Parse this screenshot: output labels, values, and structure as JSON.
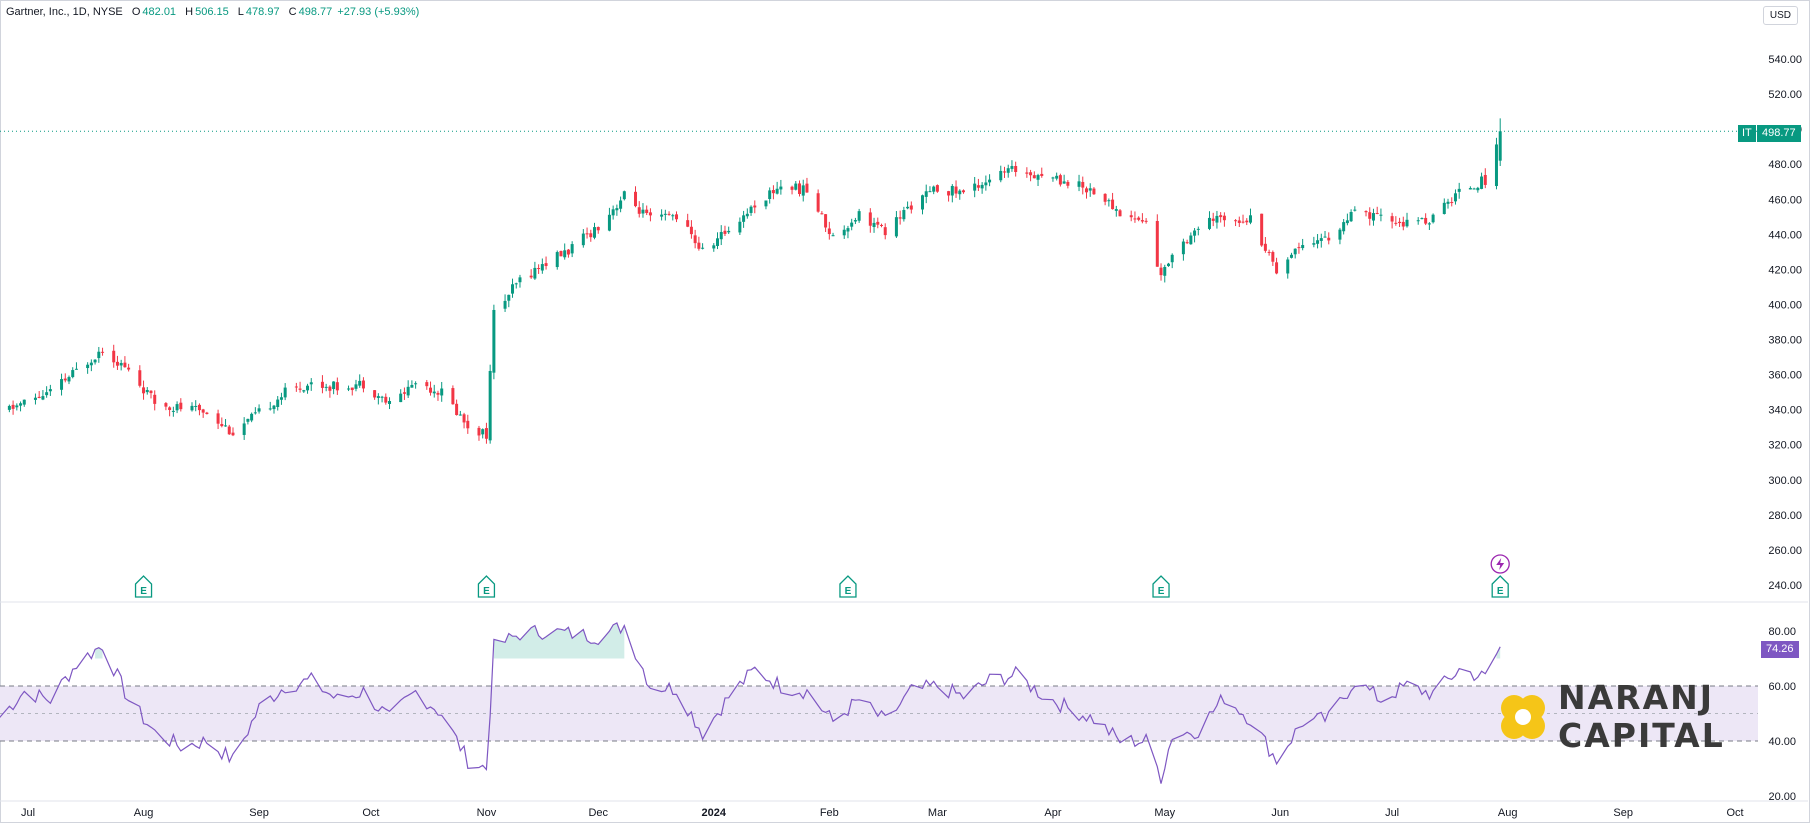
{
  "header": {
    "instrument": "Gartner, Inc., 1D, NYSE",
    "open_label": "O",
    "open": "482.01",
    "high_label": "H",
    "high": "506.15",
    "low_label": "L",
    "low": "478.97",
    "close_label": "C",
    "close": "498.77",
    "change": "+27.93 (+5.93%)"
  },
  "currency": "USD",
  "last_price": {
    "ticker": "IT",
    "value": "498.77"
  },
  "rsi_value": "74.26",
  "brand": {
    "line1": "NARANJ",
    "line2": "CAPITAL"
  },
  "colors": {
    "up": "#089981",
    "down": "#f23645",
    "rsi": "#7e57c2",
    "rsi_band": "#ede7f6",
    "earnings": "#089981",
    "dividend": "#9c27b0"
  },
  "icons": {
    "earnings": "E",
    "dividend": "lightning-icon"
  },
  "chart_data": [
    {
      "type": "candlestick",
      "title": "Gartner, Inc., 1D, NYSE",
      "xlabel": "",
      "ylabel": "",
      "ylim": [
        230,
        555
      ],
      "y_ticks": [
        240,
        260,
        280,
        300,
        320,
        340,
        360,
        380,
        400,
        420,
        440,
        460,
        480,
        500,
        520,
        540
      ],
      "y_tick_labels": [
        "240.00",
        "260.00",
        "280.00",
        "300.00",
        "320.00",
        "340.00",
        "360.00",
        "380.00",
        "400.00",
        "420.00",
        "440.00",
        "460.00",
        "480.00",
        "500.00",
        "520.00",
        "540.00"
      ],
      "x_tick_labels": [
        "Jul",
        "Aug",
        "Sep",
        "Oct",
        "Nov",
        "Dec",
        "2024",
        "Feb",
        "Mar",
        "Apr",
        "May",
        "Jun",
        "Jul",
        "Aug",
        "Sep",
        "Oct"
      ],
      "x_tick_dates": [
        "2023-07-01",
        "2023-08-01",
        "2023-09-01",
        "2023-10-01",
        "2023-11-01",
        "2023-12-01",
        "2024-01-01",
        "2024-02-01",
        "2024-03-01",
        "2024-04-01",
        "2024-05-01",
        "2024-06-01",
        "2024-07-01",
        "2024-08-01",
        "2024-09-01",
        "2024-10-01"
      ],
      "grid": false,
      "close_points": [
        [
          "2023-06-23",
          338
        ],
        [
          "2023-06-30",
          344
        ],
        [
          "2023-07-07",
          350
        ],
        [
          "2023-07-14",
          362
        ],
        [
          "2023-07-21",
          375
        ],
        [
          "2023-07-28",
          362
        ],
        [
          "2023-08-04",
          344
        ],
        [
          "2023-08-11",
          341
        ],
        [
          "2023-08-18",
          339
        ],
        [
          "2023-08-25",
          327
        ],
        [
          "2023-09-01",
          338
        ],
        [
          "2023-09-08",
          350
        ],
        [
          "2023-09-15",
          355
        ],
        [
          "2023-09-22",
          353
        ],
        [
          "2023-09-29",
          355
        ],
        [
          "2023-10-06",
          343
        ],
        [
          "2023-10-13",
          356
        ],
        [
          "2023-10-20",
          350
        ],
        [
          "2023-10-27",
          331
        ],
        [
          "2023-11-01",
          326
        ],
        [
          "2023-11-03",
          395
        ],
        [
          "2023-11-10",
          414
        ],
        [
          "2023-11-17",
          424
        ],
        [
          "2023-11-24",
          432
        ],
        [
          "2023-12-01",
          445
        ],
        [
          "2023-12-08",
          462
        ],
        [
          "2023-12-15",
          448
        ],
        [
          "2023-12-22",
          451
        ],
        [
          "2023-12-29",
          430
        ],
        [
          "2024-01-05",
          443
        ],
        [
          "2024-01-12",
          457
        ],
        [
          "2024-01-19",
          468
        ],
        [
          "2024-01-26",
          465
        ],
        [
          "2024-02-02",
          438
        ],
        [
          "2024-02-09",
          452
        ],
        [
          "2024-02-16",
          441
        ],
        [
          "2024-02-23",
          457
        ],
        [
          "2024-03-01",
          466
        ],
        [
          "2024-03-08",
          464
        ],
        [
          "2024-03-15",
          472
        ],
        [
          "2024-03-22",
          477
        ],
        [
          "2024-03-29",
          474
        ],
        [
          "2024-04-05",
          470
        ],
        [
          "2024-04-12",
          465
        ],
        [
          "2024-04-19",
          452
        ],
        [
          "2024-04-26",
          447
        ],
        [
          "2024-04-30",
          415
        ],
        [
          "2024-05-03",
          430
        ],
        [
          "2024-05-10",
          444
        ],
        [
          "2024-05-17",
          450
        ],
        [
          "2024-05-24",
          449
        ],
        [
          "2024-05-31",
          420
        ],
        [
          "2024-06-07",
          436
        ],
        [
          "2024-06-14",
          438
        ],
        [
          "2024-06-21",
          452
        ],
        [
          "2024-06-28",
          449
        ],
        [
          "2024-07-05",
          446
        ],
        [
          "2024-07-12",
          449
        ],
        [
          "2024-07-19",
          465
        ],
        [
          "2024-07-26",
          471
        ],
        [
          "2024-07-30",
          499
        ]
      ],
      "earnings_dates": [
        "2023-08-01",
        "2023-11-01",
        "2024-02-06",
        "2024-04-30",
        "2024-07-30"
      ],
      "dividend_dates": [
        "2024-07-30"
      ]
    },
    {
      "type": "line",
      "title": "",
      "ylim": [
        18,
        86
      ],
      "y_ticks": [
        20,
        40,
        60,
        80
      ],
      "y_tick_labels": [
        "20.00",
        "40.00",
        "60.00",
        "80.00"
      ],
      "band": [
        40,
        60
      ],
      "midline": 50,
      "points": [
        [
          "2023-06-23",
          48
        ],
        [
          "2023-06-30",
          58
        ],
        [
          "2023-07-07",
          55
        ],
        [
          "2023-07-14",
          68
        ],
        [
          "2023-07-21",
          75
        ],
        [
          "2023-07-28",
          55
        ],
        [
          "2023-08-04",
          43
        ],
        [
          "2023-08-11",
          38
        ],
        [
          "2023-08-18",
          40
        ],
        [
          "2023-08-25",
          33
        ],
        [
          "2023-09-01",
          52
        ],
        [
          "2023-09-08",
          60
        ],
        [
          "2023-09-15",
          62
        ],
        [
          "2023-09-22",
          55
        ],
        [
          "2023-09-29",
          58
        ],
        [
          "2023-10-06",
          48
        ],
        [
          "2023-10-13",
          58
        ],
        [
          "2023-10-20",
          50
        ],
        [
          "2023-10-27",
          33
        ],
        [
          "2023-11-01",
          30
        ],
        [
          "2023-11-03",
          74
        ],
        [
          "2023-11-10",
          79
        ],
        [
          "2023-11-17",
          80
        ],
        [
          "2023-11-24",
          79
        ],
        [
          "2023-12-01",
          78
        ],
        [
          "2023-12-08",
          82
        ],
        [
          "2023-12-15",
          60
        ],
        [
          "2023-12-22",
          59
        ],
        [
          "2023-12-29",
          43
        ],
        [
          "2024-01-05",
          56
        ],
        [
          "2024-01-12",
          66
        ],
        [
          "2024-01-19",
          60
        ],
        [
          "2024-01-26",
          58
        ],
        [
          "2024-02-02",
          47
        ],
        [
          "2024-02-09",
          55
        ],
        [
          "2024-02-16",
          47
        ],
        [
          "2024-02-23",
          58
        ],
        [
          "2024-03-01",
          60
        ],
        [
          "2024-03-08",
          56
        ],
        [
          "2024-03-15",
          62
        ],
        [
          "2024-03-22",
          64
        ],
        [
          "2024-03-29",
          57
        ],
        [
          "2024-04-05",
          52
        ],
        [
          "2024-04-12",
          48
        ],
        [
          "2024-04-19",
          40
        ],
        [
          "2024-04-26",
          40
        ],
        [
          "2024-04-30",
          27
        ],
        [
          "2024-05-03",
          42
        ],
        [
          "2024-05-10",
          44
        ],
        [
          "2024-05-17",
          56
        ],
        [
          "2024-05-24",
          48
        ],
        [
          "2024-05-31",
          33
        ],
        [
          "2024-06-07",
          47
        ],
        [
          "2024-06-14",
          48
        ],
        [
          "2024-06-21",
          62
        ],
        [
          "2024-06-28",
          55
        ],
        [
          "2024-07-05",
          60
        ],
        [
          "2024-07-12",
          57
        ],
        [
          "2024-07-19",
          66
        ],
        [
          "2024-07-26",
          63
        ],
        [
          "2024-07-30",
          74.26
        ]
      ]
    }
  ]
}
